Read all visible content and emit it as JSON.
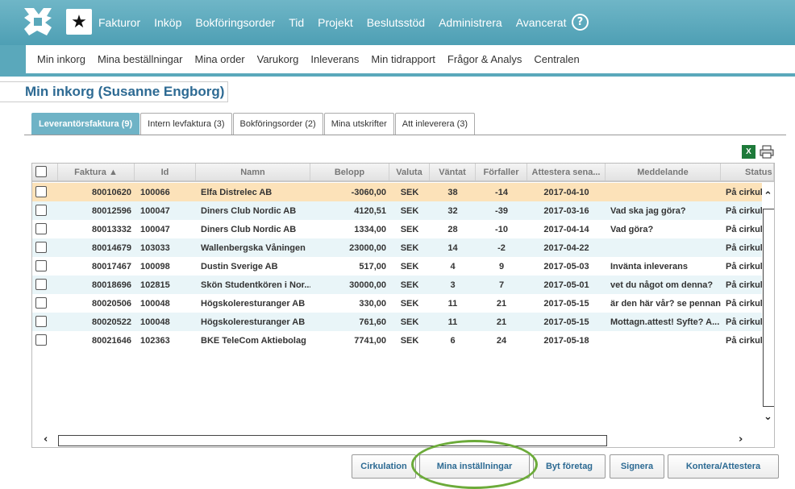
{
  "topnav": {
    "items": [
      "Fakturor",
      "Inköp",
      "Bokföringsorder",
      "Tid",
      "Projekt",
      "Beslutsstöd",
      "Administrera",
      "Avancerat"
    ],
    "help": "?",
    "star": "★"
  },
  "subnav": {
    "items": [
      "Min inkorg",
      "Mina beställningar",
      "Mina order",
      "Varukorg",
      "Inleverans",
      "Min tidrapport",
      "Frågor & Analys",
      "Centralen"
    ]
  },
  "page_title": "Min inkorg (Susanne Engborg)",
  "tabs": [
    {
      "label": "Leverantörsfaktura (9)",
      "active": true
    },
    {
      "label": "Intern levfaktura (3)",
      "active": false
    },
    {
      "label": "Bokföringsorder (2)",
      "active": false
    },
    {
      "label": "Mina utskrifter",
      "active": false
    },
    {
      "label": "Att inleverera (3)",
      "active": false
    }
  ],
  "export": {
    "excel_icon": "excel-icon",
    "xls_glyph": "X",
    "print_icon": "print-icon"
  },
  "columns": [
    "Faktura ▲",
    "Id",
    "Namn",
    "Belopp",
    "Valuta",
    "Väntat",
    "Förfaller",
    "Attestera sena...",
    "Meddelande",
    "Status"
  ],
  "rows": [
    {
      "faktura": "80010620",
      "id": "100066",
      "namn": "Elfa Distrelec AB",
      "belopp": "-3060,00",
      "valuta": "SEK",
      "vantat": "38",
      "forfaller": "-14",
      "attestera": "2017-04-10",
      "meddelande": "",
      "status": "På cirkulation",
      "selected": true
    },
    {
      "faktura": "80012596",
      "id": "100047",
      "namn": "Diners Club Nordic AB",
      "belopp": "4120,51",
      "valuta": "SEK",
      "vantat": "32",
      "forfaller": "-39",
      "attestera": "2017-03-16",
      "meddelande": "Vad ska jag göra?",
      "status": "På cirkulation"
    },
    {
      "faktura": "80013332",
      "id": "100047",
      "namn": "Diners Club Nordic AB",
      "belopp": "1334,00",
      "valuta": "SEK",
      "vantat": "28",
      "forfaller": "-10",
      "attestera": "2017-04-14",
      "meddelande": "Vad göra?",
      "status": "På cirkulation"
    },
    {
      "faktura": "80014679",
      "id": "103033",
      "namn": "Wallenbergska Våningen",
      "belopp": "23000,00",
      "valuta": "SEK",
      "vantat": "14",
      "forfaller": "-2",
      "attestera": "2017-04-22",
      "meddelande": "",
      "status": "På cirkulation"
    },
    {
      "faktura": "80017467",
      "id": "100098",
      "namn": "Dustin Sverige AB",
      "belopp": "517,00",
      "valuta": "SEK",
      "vantat": "4",
      "forfaller": "9",
      "attestera": "2017-05-03",
      "meddelande": "Invänta inleverans",
      "status": "På cirkulation"
    },
    {
      "faktura": "80018696",
      "id": "102815",
      "namn": "Skön Studentkören i Nor...",
      "belopp": "30000,00",
      "valuta": "SEK",
      "vantat": "3",
      "forfaller": "7",
      "attestera": "2017-05-01",
      "meddelande": "vet du något om denna?",
      "status": "På cirkulation"
    },
    {
      "faktura": "80020506",
      "id": "100048",
      "namn": "Högskoleresturanger AB",
      "belopp": "330,00",
      "valuta": "SEK",
      "vantat": "11",
      "forfaller": "21",
      "attestera": "2017-05-15",
      "meddelande": "är den här vår? se pennan",
      "status": "På cirkulation"
    },
    {
      "faktura": "80020522",
      "id": "100048",
      "namn": "Högskoleresturanger AB",
      "belopp": "761,60",
      "valuta": "SEK",
      "vantat": "11",
      "forfaller": "21",
      "attestera": "2017-05-15",
      "meddelande": "Mottagn.attest! Syfte? A...",
      "status": "På cirkulation"
    },
    {
      "faktura": "80021646",
      "id": "102363",
      "namn": "BKE TeleCom Aktiebolag",
      "belopp": "7741,00",
      "valuta": "SEK",
      "vantat": "6",
      "forfaller": "24",
      "attestera": "2017-05-18",
      "meddelande": "",
      "status": "På cirkulation"
    }
  ],
  "buttons": {
    "cirkulation": "Cirkulation",
    "mina_installningar": "Mina inställningar",
    "byt_foretag": "Byt företag",
    "signera": "Signera",
    "kontera": "Kontera/Attestera"
  },
  "colors": {
    "accent": "#5aa8bb",
    "title": "#2d6a93",
    "selected_row": "#fce2b9",
    "alt_row": "#e9f5f8",
    "highlight": "#6cab3a"
  }
}
